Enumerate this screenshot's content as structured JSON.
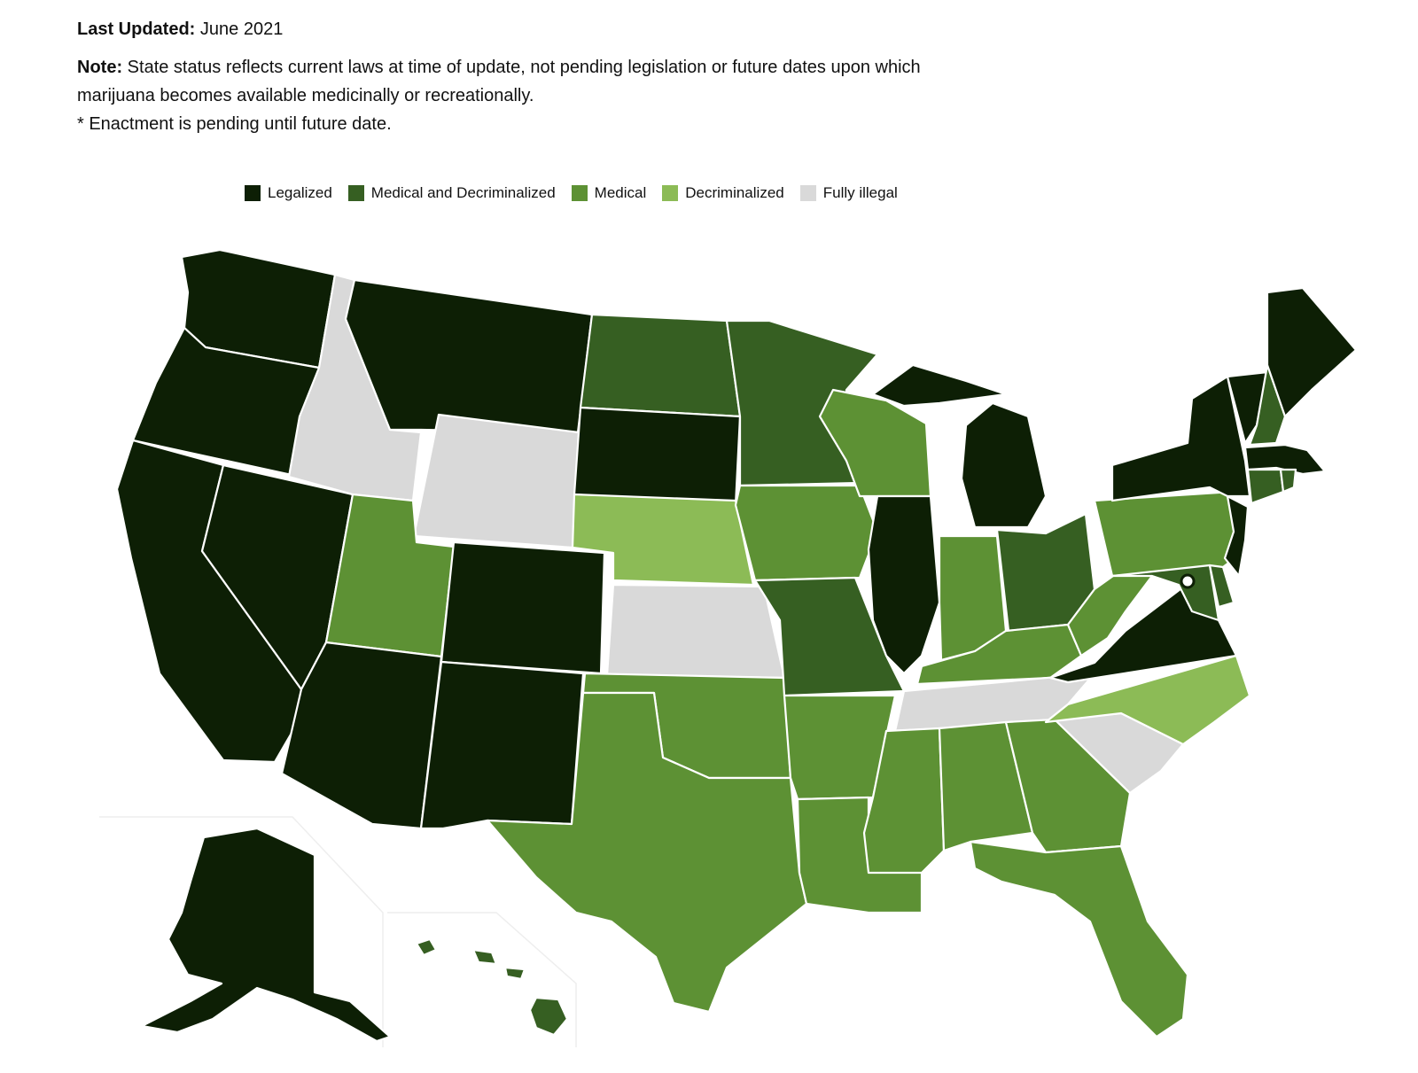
{
  "header": {
    "updated_label": "Last Updated:",
    "updated_value": "June 2021",
    "note_label": "Note:",
    "note_text": "State status reflects current laws at time of update, not pending legislation or future dates upon which marijuana becomes available medicinally or recreationally.",
    "footnote": "* Enactment is pending until future date."
  },
  "legend": [
    {
      "key": "legalized",
      "label": "Legalized",
      "color": "#0d1f05"
    },
    {
      "key": "med_decrim",
      "label": "Medical and Decriminalized",
      "color": "#365f22"
    },
    {
      "key": "medical",
      "label": "Medical",
      "color": "#5d9134"
    },
    {
      "key": "decrim",
      "label": "Decriminalized",
      "color": "#8cbb56"
    },
    {
      "key": "illegal",
      "label": "Fully illegal",
      "color": "#d9d9d9"
    }
  ],
  "states": {
    "WA": "legalized",
    "OR": "legalized",
    "CA": "legalized",
    "NV": "legalized",
    "MT": "legalized",
    "AZ": "legalized",
    "CO": "legalized",
    "NM": "legalized",
    "SD": "legalized",
    "IL": "legalized",
    "MI": "legalized",
    "NY": "legalized",
    "VT": "legalized",
    "ME": "legalized",
    "MA": "legalized",
    "NJ": "legalized",
    "VA": "legalized",
    "AK": "legalized",
    "ND": "med_decrim",
    "MN": "med_decrim",
    "MO": "med_decrim",
    "OH": "med_decrim",
    "NH": "med_decrim",
    "CT": "med_decrim",
    "RI": "med_decrim",
    "DE": "med_decrim",
    "MD": "med_decrim",
    "HI": "med_decrim",
    "UT": "medical",
    "IA": "medical",
    "WI": "medical",
    "IN": "medical",
    "KY": "medical",
    "WV": "medical",
    "PA": "medical",
    "OK": "medical",
    "TX": "medical",
    "AR": "medical",
    "LA": "medical",
    "MS": "medical",
    "AL": "medical",
    "GA": "medical",
    "FL": "medical",
    "NE": "decrim",
    "NC": "decrim",
    "ID": "illegal",
    "WY": "illegal",
    "KS": "illegal",
    "TN": "illegal",
    "SC": "illegal"
  }
}
